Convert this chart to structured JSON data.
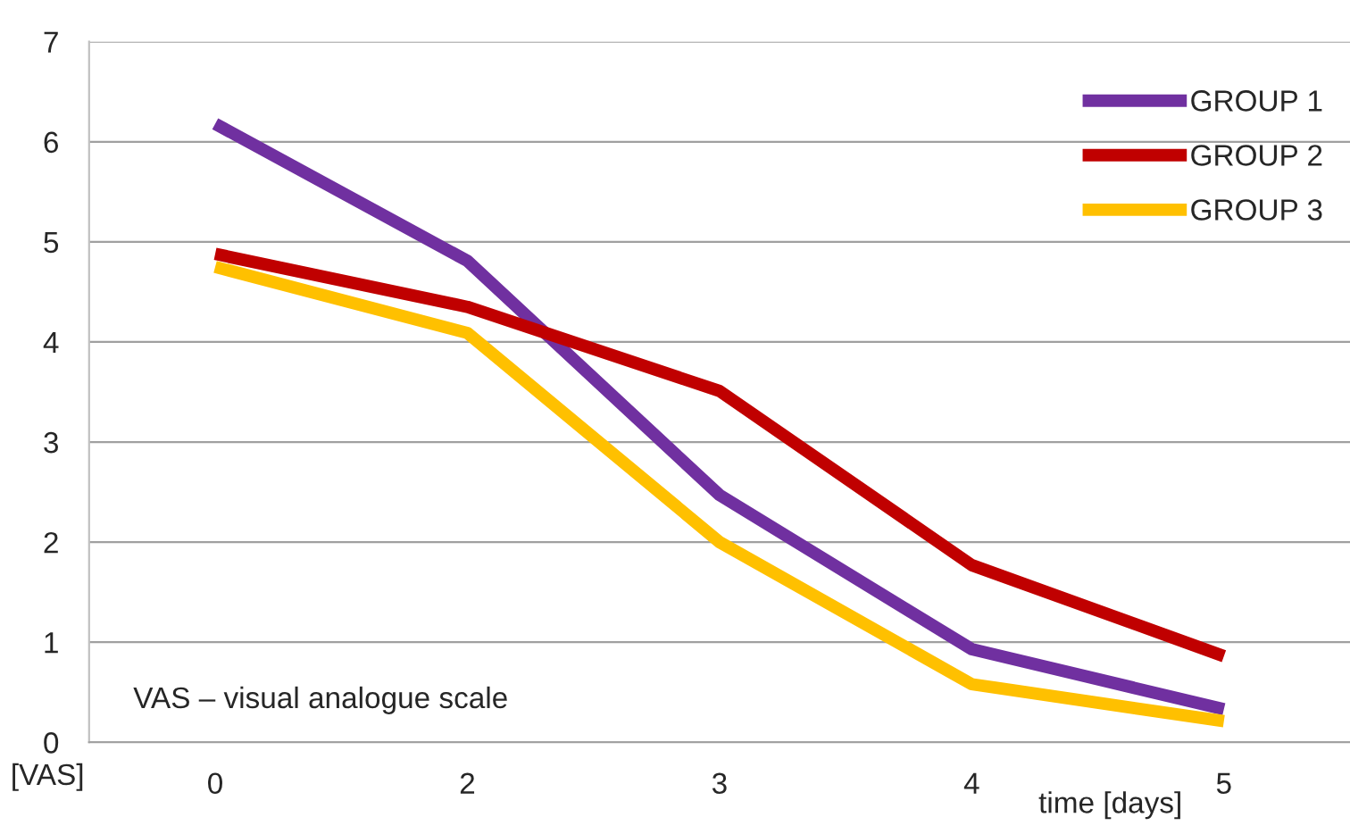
{
  "chart_data": {
    "type": "line",
    "categories": [
      "0",
      "2",
      "3",
      "4",
      "5"
    ],
    "series": [
      {
        "name": "GROUP 1",
        "color": "#7030a0",
        "values": [
          6.18,
          4.81,
          2.47,
          0.93,
          0.33
        ]
      },
      {
        "name": "GROUP 2",
        "color": "#c00000",
        "values": [
          4.88,
          4.35,
          3.51,
          1.77,
          0.86
        ]
      },
      {
        "name": "GROUP 3",
        "color": "#ffc000",
        "values": [
          4.75,
          4.09,
          2.0,
          0.58,
          0.21
        ]
      }
    ],
    "xlabel": "time [days]",
    "ylabel": "[VAS]",
    "annotations": [
      "VAS – visual analogue scale"
    ],
    "ylim": [
      0,
      7
    ],
    "yticks": [
      0,
      1,
      2,
      3,
      4,
      5,
      6,
      7
    ],
    "grid": "y",
    "legend": "top right",
    "marker": "none",
    "line_style": "solid"
  }
}
